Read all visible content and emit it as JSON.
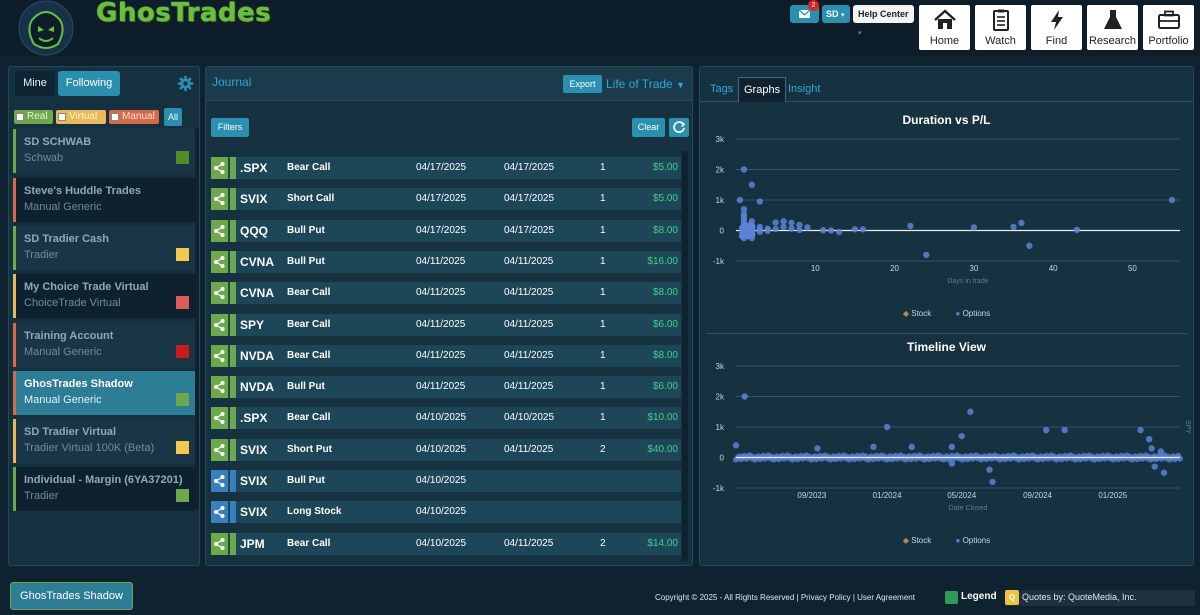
{
  "header": {
    "brand": "GhosTrades",
    "mail_badge": "2",
    "user_menu": "SD",
    "help_center": "Help Center",
    "nav": [
      {
        "label": "Home",
        "icon": "home-icon"
      },
      {
        "label": "Watch",
        "icon": "clipboard-icon"
      },
      {
        "label": "Find",
        "icon": "lightning-icon"
      },
      {
        "label": "Research",
        "icon": "flask-icon"
      },
      {
        "label": "Portfolio",
        "icon": "briefcase-icon"
      }
    ]
  },
  "sidebar": {
    "tabs": {
      "mine": "Mine",
      "following": "Following"
    },
    "filters": {
      "real": "Real",
      "virtual": "Virtual",
      "manual": "Manual",
      "all": "All"
    },
    "accounts": [
      {
        "name": "SD SCHWAB",
        "type": "Schwab",
        "color": "#4e8f2c",
        "kind": "real",
        "active": false
      },
      {
        "name": "Steve's Huddle Trades",
        "type": "Manual Generic",
        "color": "",
        "kind": "manual",
        "active": false
      },
      {
        "name": "SD Tradier Cash",
        "type": "Tradier",
        "color": "#f2c94c",
        "kind": "real",
        "active": false
      },
      {
        "name": "My Choice Trade Virtual",
        "type": "ChoiceTrade Virtual",
        "color": "#e05c5c",
        "kind": "virtual",
        "active": false
      },
      {
        "name": "Training Account",
        "type": "Manual Generic",
        "color": "#cc1a1a",
        "kind": "manual",
        "active": false
      },
      {
        "name": "GhosTrades Shadow",
        "type": "Manual Generic",
        "color": "#6da84a",
        "kind": "manual",
        "active": true
      },
      {
        "name": "SD Tradier Virtual",
        "type": "Tradier Virtual 100K (Beta)",
        "color": "#f2c94c",
        "kind": "virtual",
        "active": false
      },
      {
        "name": "Individual - Margin (6YA37201)",
        "type": "Tradier",
        "color": "#6da84a",
        "kind": "real",
        "active": false
      }
    ]
  },
  "journal": {
    "title": "Journal",
    "export": "Export",
    "view_select": "Life of Trade",
    "filters": "Filters",
    "clear": "Clear",
    "rows": [
      {
        "symbol": ".SPX",
        "strategy": "Bear Call",
        "open": "04/17/2025",
        "close": "04/17/2025",
        "qty": "1",
        "pl": "$5.00",
        "tone": "green"
      },
      {
        "symbol": "SVIX",
        "strategy": "Short Call",
        "open": "04/17/2025",
        "close": "04/17/2025",
        "qty": "1",
        "pl": "$5.00",
        "tone": "green"
      },
      {
        "symbol": "QQQ",
        "strategy": "Bull Put",
        "open": "04/17/2025",
        "close": "04/17/2025",
        "qty": "1",
        "pl": "$8.00",
        "tone": "green"
      },
      {
        "symbol": "CVNA",
        "strategy": "Bull Put",
        "open": "04/11/2025",
        "close": "04/11/2025",
        "qty": "1",
        "pl": "$16.00",
        "tone": "green"
      },
      {
        "symbol": "CVNA",
        "strategy": "Bear Call",
        "open": "04/11/2025",
        "close": "04/11/2025",
        "qty": "1",
        "pl": "$8.00",
        "tone": "green"
      },
      {
        "symbol": "SPY",
        "strategy": "Bear Call",
        "open": "04/11/2025",
        "close": "04/11/2025",
        "qty": "1",
        "pl": "$6.00",
        "tone": "green"
      },
      {
        "symbol": "NVDA",
        "strategy": "Bear Call",
        "open": "04/11/2025",
        "close": "04/11/2025",
        "qty": "1",
        "pl": "$8.00",
        "tone": "green"
      },
      {
        "symbol": "NVDA",
        "strategy": "Bull Put",
        "open": "04/11/2025",
        "close": "04/11/2025",
        "qty": "1",
        "pl": "$6.00",
        "tone": "green"
      },
      {
        "symbol": ".SPX",
        "strategy": "Bear Call",
        "open": "04/10/2025",
        "close": "04/10/2025",
        "qty": "1",
        "pl": "$10.00",
        "tone": "green"
      },
      {
        "symbol": "SVIX",
        "strategy": "Short Put",
        "open": "04/10/2025",
        "close": "04/11/2025",
        "qty": "2",
        "pl": "$40.00",
        "tone": "green"
      },
      {
        "symbol": "SVIX",
        "strategy": "Bull Put",
        "open": "04/10/2025",
        "close": "",
        "qty": "",
        "pl": "",
        "tone": "blue"
      },
      {
        "symbol": "SVIX",
        "strategy": "Long Stock",
        "open": "04/10/2025",
        "close": "",
        "qty": "",
        "pl": "",
        "tone": "blue"
      },
      {
        "symbol": "JPM",
        "strategy": "Bear Call",
        "open": "04/10/2025",
        "close": "04/11/2025",
        "qty": "2",
        "pl": "$14.00",
        "tone": "green"
      }
    ]
  },
  "graphs": {
    "tabs": {
      "tags": "Tags",
      "graphs": "Graphs",
      "insight": "Insight"
    },
    "legend": {
      "stock": "Stock",
      "options": "Options"
    }
  },
  "chart_data": [
    {
      "type": "scatter",
      "title": "Duration vs P/L",
      "xlabel": "Days in trade",
      "ylabel": "",
      "xlim": [
        0,
        56
      ],
      "ylim": [
        -1000,
        3000
      ],
      "y_ticks": [
        3000,
        2000,
        1000,
        0,
        -1000
      ],
      "y_tick_labels": [
        "3k",
        "2k",
        "1k",
        "0",
        "-1k"
      ],
      "x_ticks": [
        10,
        20,
        30,
        40,
        50
      ],
      "x_tick_labels": [
        "10",
        "20",
        "30",
        "40",
        "50"
      ],
      "series": [
        {
          "name": "Stock",
          "color": "#b58a4a",
          "points": []
        },
        {
          "name": "Options",
          "color": "#5b82d6",
          "points": [
            [
              1,
              2000
            ],
            [
              2,
              1500
            ],
            [
              0.5,
              1000
            ],
            [
              3,
              950
            ],
            [
              1,
              700
            ],
            [
              1,
              550
            ],
            [
              1,
              450
            ],
            [
              1,
              350
            ],
            [
              1,
              250
            ],
            [
              1,
              150
            ],
            [
              1,
              80
            ],
            [
              1,
              20
            ],
            [
              1,
              -30
            ],
            [
              1,
              -80
            ],
            [
              1,
              -150
            ],
            [
              1,
              -250
            ],
            [
              2,
              300
            ],
            [
              2,
              150
            ],
            [
              2,
              60
            ],
            [
              2,
              0
            ],
            [
              2,
              -60
            ],
            [
              2,
              -150
            ],
            [
              2,
              -250
            ],
            [
              3,
              120
            ],
            [
              3,
              30
            ],
            [
              3,
              -40
            ],
            [
              4,
              60
            ],
            [
              4,
              -10
            ],
            [
              5,
              260
            ],
            [
              5,
              50
            ],
            [
              6,
              300
            ],
            [
              6,
              120
            ],
            [
              7,
              250
            ],
            [
              7,
              60
            ],
            [
              8,
              180
            ],
            [
              8,
              20
            ],
            [
              9,
              100
            ],
            [
              11,
              10
            ],
            [
              12,
              0
            ],
            [
              13,
              -50
            ],
            [
              15,
              40
            ],
            [
              16,
              40
            ],
            [
              22,
              150
            ],
            [
              24,
              -800
            ],
            [
              30,
              100
            ],
            [
              35,
              120
            ],
            [
              36,
              250
            ],
            [
              37,
              -500
            ],
            [
              43,
              20
            ],
            [
              55,
              1000
            ]
          ]
        }
      ]
    },
    {
      "type": "scatter",
      "title": "Timeline View",
      "xlabel": "Date Closed",
      "ylabel": "SPY",
      "ylim": [
        -1000,
        3000
      ],
      "y_ticks": [
        3000,
        2000,
        1000,
        0,
        -1000
      ],
      "y_tick_labels": [
        "3k",
        "2k",
        "1k",
        "0",
        "-1k"
      ],
      "x_tick_labels": [
        "09/2023",
        "01/2024",
        "05/2024",
        "09/2024",
        "01/2025"
      ],
      "series": [
        {
          "name": "Stock",
          "color": "#b58a4a",
          "points": []
        },
        {
          "name": "Options",
          "color": "#5b82d6",
          "points": [
            [
              "2023-05-15",
              2000
            ],
            [
              "2023-05-01",
              400
            ],
            [
              "2024-01-01",
              1000
            ],
            [
              "2024-05-15",
              1500
            ],
            [
              "2024-05-01",
              700
            ],
            [
              "2024-09-15",
              900
            ],
            [
              "2024-10-15",
              900
            ],
            [
              "2025-02-15",
              900
            ],
            [
              "2025-03-01",
              600
            ],
            [
              "2023-09-10",
              300
            ],
            [
              "2023-12-10",
              350
            ],
            [
              "2024-02-10",
              350
            ],
            [
              "2024-04-15",
              350
            ],
            [
              "2024-06-15",
              -400
            ],
            [
              "2024-04-15",
              -200
            ],
            [
              "2025-03-10",
              -300
            ],
            [
              "2024-06-20",
              -800
            ],
            [
              "2025-03-25",
              -500
            ],
            [
              "2025-03-20",
              200
            ],
            [
              "2025-03-05",
              300
            ]
          ]
        }
      ]
    }
  ],
  "footer": {
    "active_account": "GhosTrades Shadow",
    "copyright": "Copyright © 2025 - All Rights Reserved | Privacy Policy | User Agreement",
    "legend": "Legend",
    "quotes": "Quotes by: QuoteMedia, Inc."
  }
}
